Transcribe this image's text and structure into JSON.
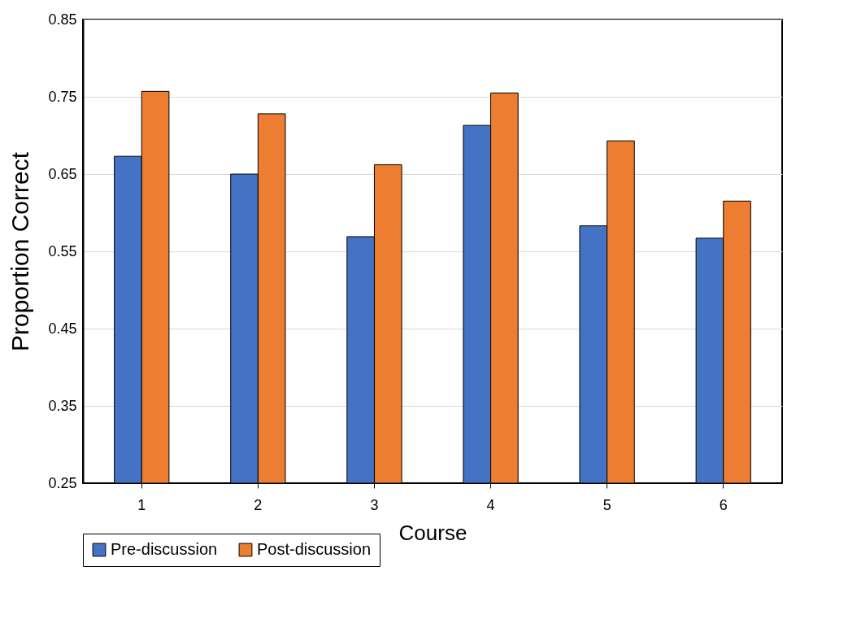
{
  "chart_data": {
    "type": "bar",
    "xlabel": "Course",
    "ylabel": "Proportion Correct",
    "categories": [
      "1",
      "2",
      "3",
      "4",
      "5",
      "6"
    ],
    "series": [
      {
        "name": "Pre-discussion",
        "color": "#4472c4",
        "values": [
          0.673,
          0.65,
          0.569,
          0.713,
          0.583,
          0.567
        ]
      },
      {
        "name": "Post-discussion",
        "color": "#ed7d31",
        "values": [
          0.757,
          0.728,
          0.662,
          0.755,
          0.693,
          0.615
        ]
      }
    ],
    "ylim": [
      0.25,
      0.85
    ],
    "yticks": [
      0.25,
      0.35,
      0.45,
      0.55,
      0.65,
      0.75,
      0.85
    ],
    "grid": "y",
    "legend": "bottom left"
  }
}
